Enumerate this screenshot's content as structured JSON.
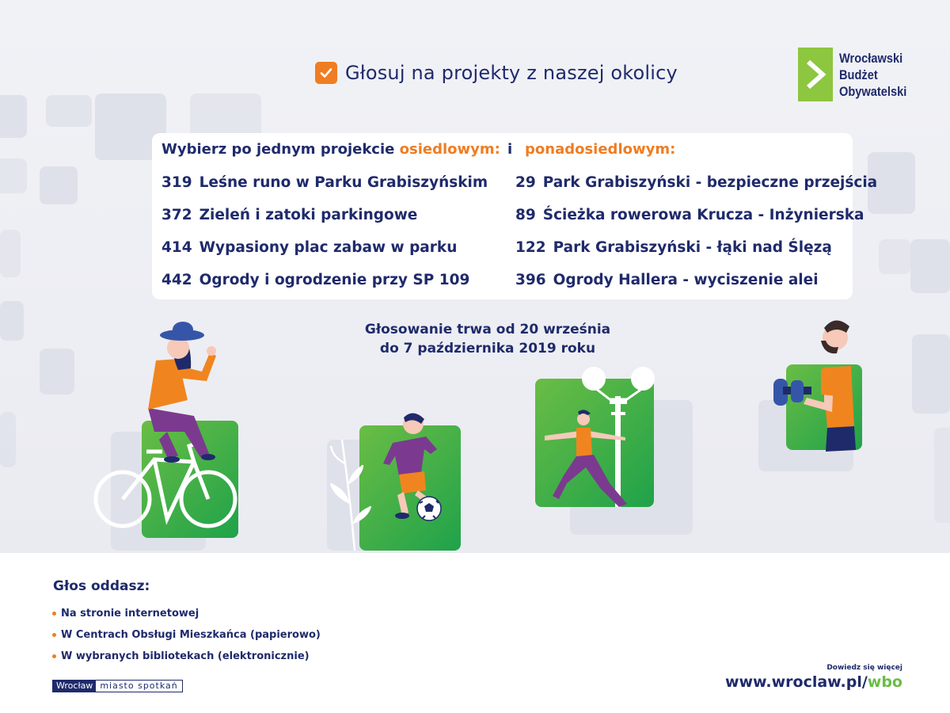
{
  "header": {
    "title": "Głosuj na projekty z naszej okolicy",
    "check_icon": "checkbox-checked-icon",
    "accent_color": "#ef7d22"
  },
  "logo": {
    "line1": "Wrocławski",
    "line2": "Budżet",
    "line3": "Obywatelski",
    "mark_icon": "chevron-right-icon",
    "brand_color": "#8dc63f"
  },
  "projects": {
    "intro": "Wybierz po jednym projekcie",
    "local_label": "osiedlowym:",
    "conjunction": "i",
    "city_label": "ponadosiedlowym:",
    "local": [
      {
        "number": "319",
        "name": "Leśne runo w Parku Grabiszyńskim"
      },
      {
        "number": "372",
        "name": "Zieleń i zatoki parkingowe"
      },
      {
        "number": "414",
        "name": "Wypasiony plac zabaw w parku"
      },
      {
        "number": "442",
        "name": "Ogrody i ogrodzenie przy SP 109"
      }
    ],
    "city": [
      {
        "number": "29",
        "name": "Park Grabiszyński - bezpieczne przejścia"
      },
      {
        "number": "89",
        "name": "Ścieżka rowerowa Krucza - Inżynierska"
      },
      {
        "number": "122",
        "name": "Park Grabiszyński - łąki nad Ślęzą"
      },
      {
        "number": "396",
        "name": "Ogrody Hallera - wyciszenie alei"
      }
    ]
  },
  "voting": {
    "line1": "Głosowanie trwa od 20 września",
    "line2": "do 7 października 2019 roku"
  },
  "footer": {
    "title": "Głos oddasz:",
    "options": [
      "Na stronie internetowej",
      "W Centrach Obsługi Mieszkańca (papierowo)",
      "W wybranych bibliotekach (elektronicznie)"
    ],
    "city_logo_left": "Wrocław",
    "city_logo_right": "miasto spotkań",
    "more_info": "Dowiedz się więcej",
    "url_main": "www.wroclaw.pl/",
    "url_suffix": "wbo"
  },
  "colors": {
    "navy": "#1f2a6b",
    "orange": "#ef7d22",
    "green": "#6abd45"
  }
}
